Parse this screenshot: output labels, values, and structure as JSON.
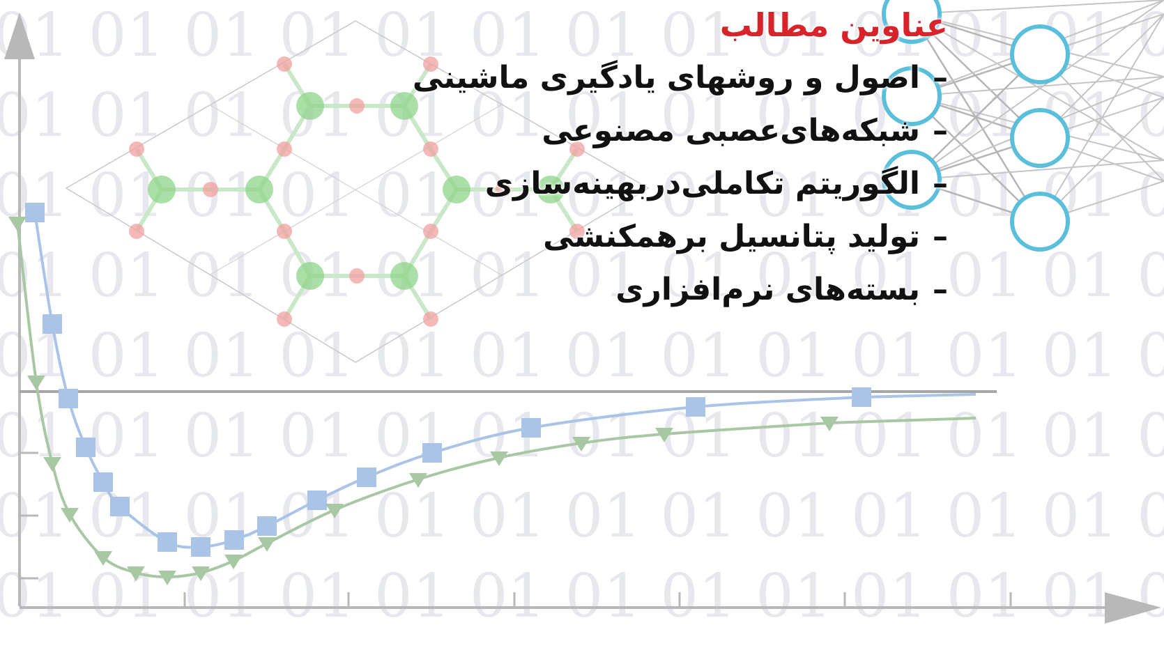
{
  "title": "عناوین مطالب",
  "bullet": "–",
  "topics": [
    "اصول و روشهای یادگیری ماشینی",
    "شبکه‌های‌عصبی مصنوعی",
    "الگوریتم تکاملی‌دربهینه‌سازی",
    "تولید پتانسیل برهمکنشی",
    "بسته‌های نرم‌افزاری"
  ],
  "background_text": "01",
  "colors": {
    "title": "#d8232a",
    "text": "#111111",
    "binary": "#e6e8ed",
    "neuron": "#5bbfdb",
    "series_squares": "#a9c4e6",
    "series_triangles": "#a8c8a4",
    "atom_green": "#8fd48b",
    "atom_red": "#f0a0a0"
  },
  "icons": [
    "binary-background",
    "potential-curve-plot",
    "hexagonal-lattice-graphic",
    "neural-network-graphic"
  ]
}
